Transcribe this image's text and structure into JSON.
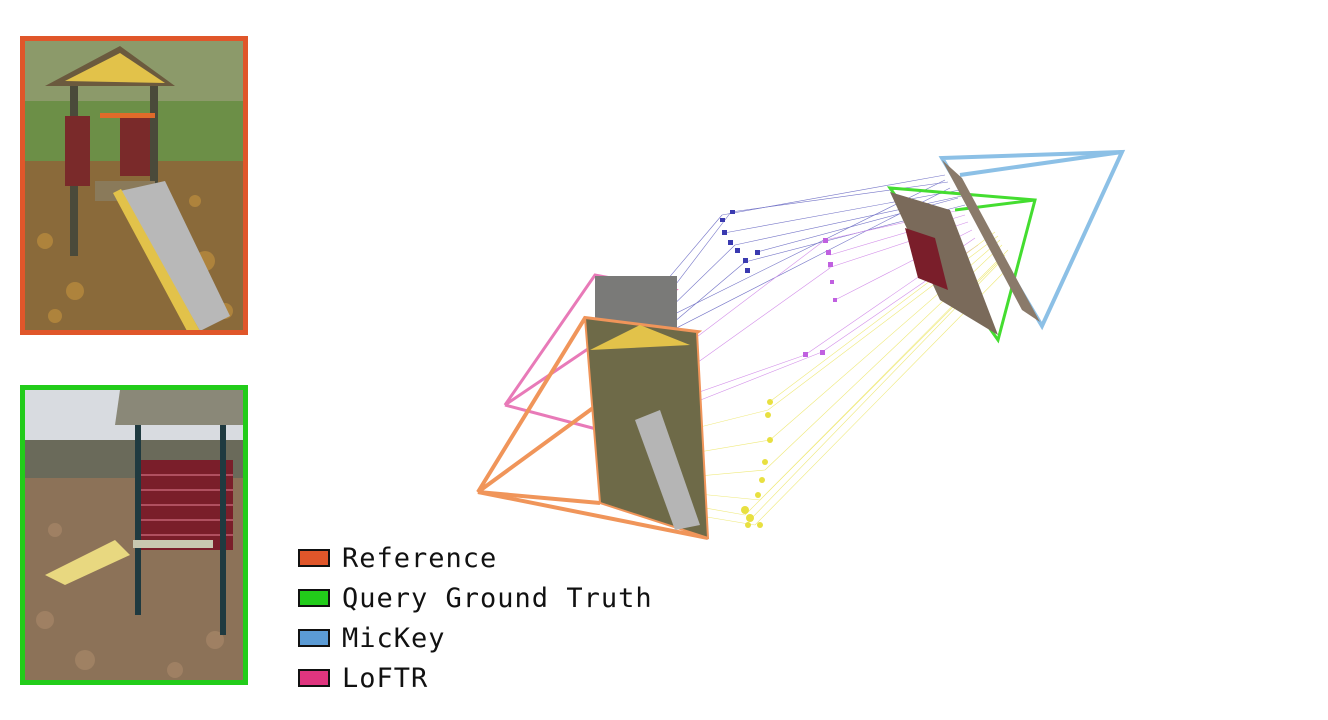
{
  "colors": {
    "reference": "#e0562a",
    "query_gt": "#22cc1a",
    "mickey": "#5b9bd5",
    "loftr": "#e0357f"
  },
  "legend": [
    {
      "label": "Reference",
      "color": "#e0562a"
    },
    {
      "label": "Query Ground Truth",
      "color": "#22cc1a"
    },
    {
      "label": "MicKey",
      "color": "#5b9bd5"
    },
    {
      "label": "LoFTR",
      "color": "#e0357f"
    }
  ],
  "images": {
    "reference": {
      "description": "playground slide with wooden roof, autumn leaves"
    },
    "query": {
      "description": "playground structure with red wooden panel and yellow slide"
    }
  }
}
